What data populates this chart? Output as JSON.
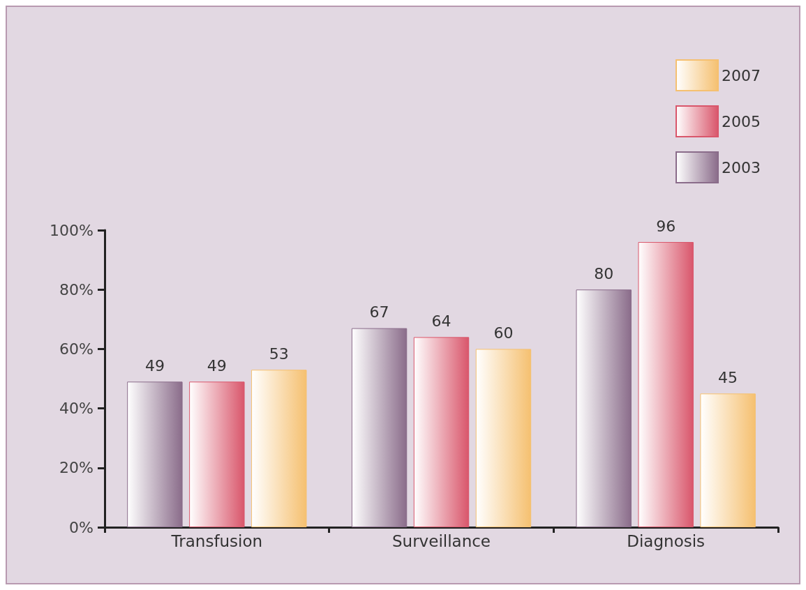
{
  "chart_data": {
    "type": "bar",
    "categories": [
      "Transfusion",
      "Surveillance",
      "Diagnosis"
    ],
    "series": [
      {
        "name": "2003",
        "color": "#8a6c8a",
        "values": [
          49,
          67,
          80
        ]
      },
      {
        "name": "2005",
        "color": "#d9566b",
        "values": [
          49,
          64,
          96
        ]
      },
      {
        "name": "2007",
        "color": "#f5c070",
        "values": [
          53,
          60,
          45
        ]
      }
    ],
    "ylim": [
      0,
      100
    ],
    "yticks": [
      {
        "value": 0,
        "label": "0%"
      },
      {
        "value": 20,
        "label": "20%"
      },
      {
        "value": 40,
        "label": "40%"
      },
      {
        "value": 60,
        "label": "60%"
      },
      {
        "value": 80,
        "label": "80%"
      },
      {
        "value": 100,
        "label": "100%"
      }
    ],
    "data_labels": true,
    "grid": false,
    "legend": "top right"
  }
}
